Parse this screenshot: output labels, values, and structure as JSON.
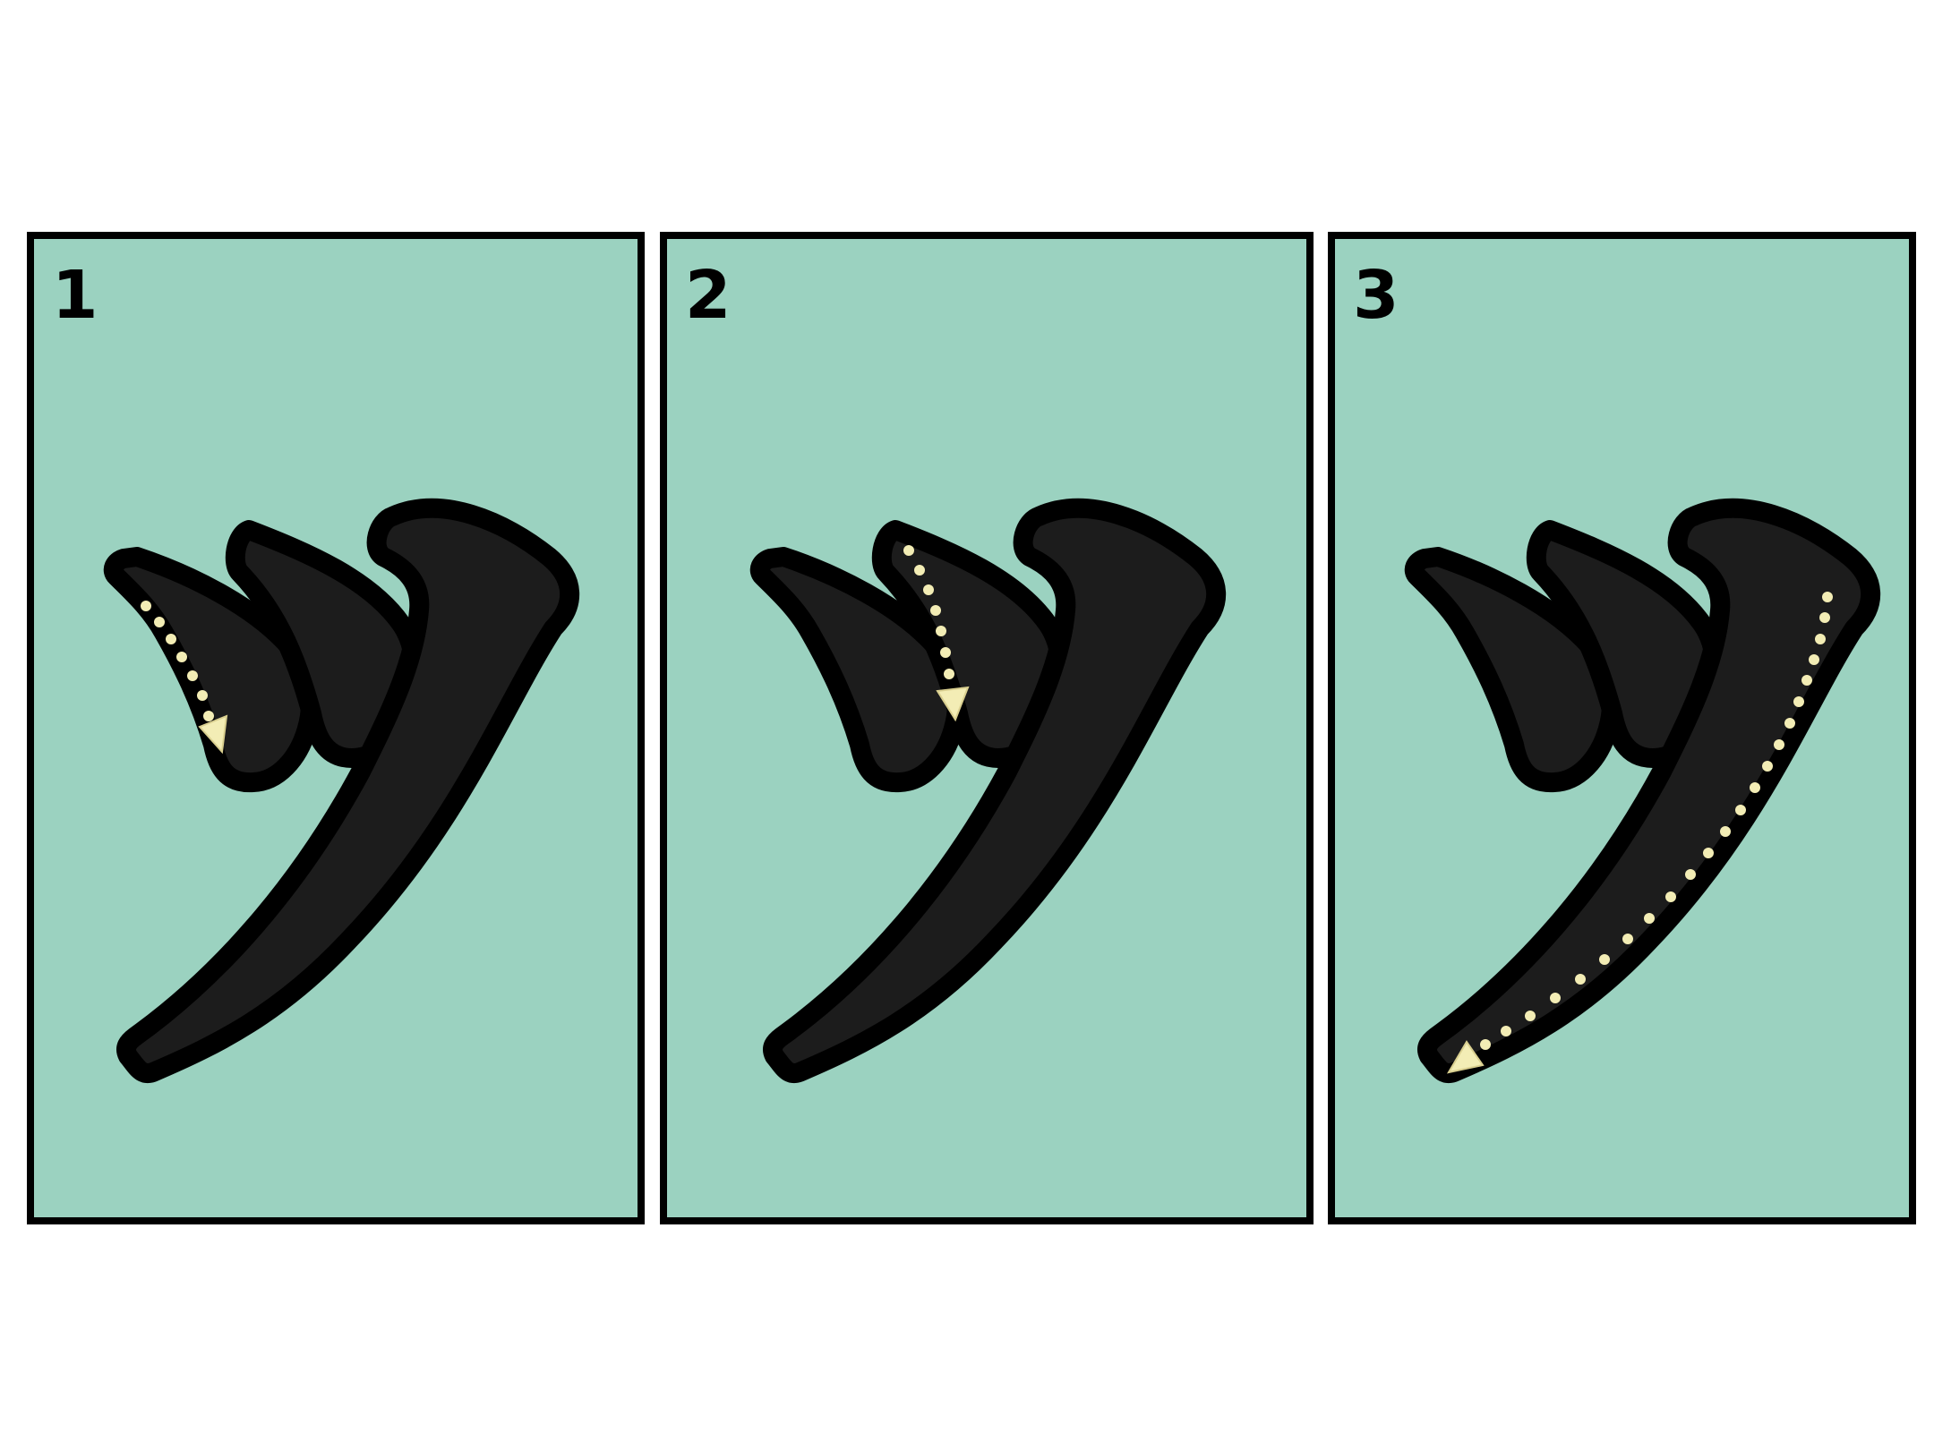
{
  "panels": [
    {
      "step": "1",
      "highlighted_stroke": 1
    },
    {
      "step": "2",
      "highlighted_stroke": 2
    },
    {
      "step": "3",
      "highlighted_stroke": 3
    }
  ],
  "colors": {
    "panel_background": "#9bd2c0",
    "border": "#000000",
    "stroke_fill": "#1c1c1c",
    "guide_dots": "#f3edb5",
    "arrow": "#f3edb5"
  }
}
